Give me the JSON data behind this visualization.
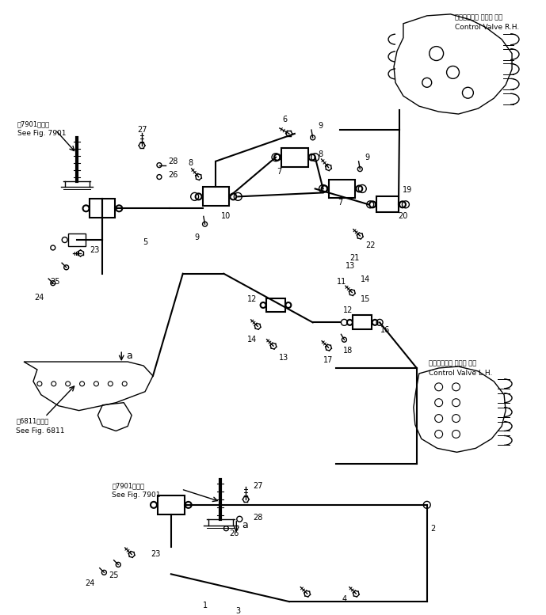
{
  "bg_color": "#ffffff",
  "line_color": "#000000",
  "fig_width": 6.89,
  "fig_height": 7.77,
  "dpi": 100,
  "labels": {
    "control_valve_rh_jp": "コントロール バルブ 右側",
    "control_valve_rh_en": "Control Valve R.H.",
    "control_valve_lh_jp": "コントロール バルブ 左側",
    "control_valve_lh_en": "Control Valve L.H.",
    "see_fig_7901_jp1": "第7901図参照",
    "see_fig_7901_en1": "See Fig. 7901",
    "see_fig_7901_jp2": "第7901図参照",
    "see_fig_7901_en2": "See Fig. 7901",
    "see_fig_6811_jp": "第6811図参照",
    "see_fig_6811_en": "See Fig. 6811"
  }
}
